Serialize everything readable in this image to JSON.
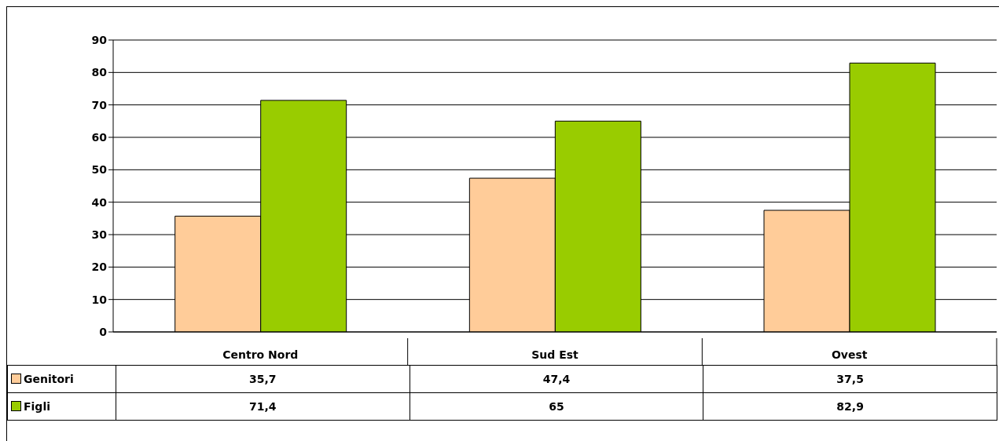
{
  "chart_data": {
    "type": "bar",
    "categories": [
      "Centro Nord",
      "Sud Est",
      "Ovest"
    ],
    "series": [
      {
        "name": "Genitori",
        "color": "#ffcc99",
        "values": [
          35.7,
          47.4,
          37.5
        ],
        "value_labels": [
          "35,7",
          "47,4",
          "37,5"
        ]
      },
      {
        "name": "Figli",
        "color": "#99cc00",
        "values": [
          71.4,
          65,
          82.9
        ],
        "value_labels": [
          "71,4",
          "65",
          "82,9"
        ]
      }
    ],
    "ylim": [
      0,
      90
    ],
    "yticks": [
      0,
      10,
      20,
      30,
      40,
      50,
      60,
      70,
      80,
      90
    ],
    "grid": "y",
    "legend": "bottom"
  }
}
